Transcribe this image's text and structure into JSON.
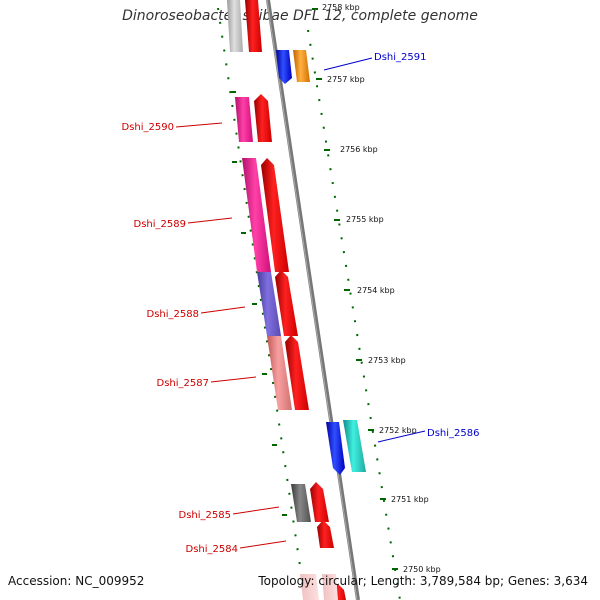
{
  "title": "Dinoroseobacter shibae DFL 12, complete genome",
  "footer": {
    "accession": "Accession: NC_009952",
    "topology": "Topology: circular; Length: 3,789,584 bp; Genes: 3,634"
  },
  "scale_labels": [
    "2758 kbp",
    "2757 kbp",
    "2756 kbp",
    "2755 kbp",
    "2754 kbp",
    "2753 kbp",
    "2752 kbp",
    "2751 kbp",
    "2750 kbp"
  ],
  "gene_labels": [
    {
      "name": "Dshi_2591",
      "side": "right",
      "color": "#0000cc"
    },
    {
      "name": "Dshi_2590",
      "side": "left",
      "color": "#cc0000"
    },
    {
      "name": "Dshi_2589",
      "side": "left",
      "color": "#cc0000"
    },
    {
      "name": "Dshi_2588",
      "side": "left",
      "color": "#cc0000"
    },
    {
      "name": "Dshi_2587",
      "side": "left",
      "color": "#cc0000"
    },
    {
      "name": "Dshi_2586",
      "side": "right",
      "color": "#0000cc"
    },
    {
      "name": "Dshi_2585",
      "side": "left",
      "color": "#cc0000"
    },
    {
      "name": "Dshi_2584",
      "side": "left",
      "color": "#cc0000"
    }
  ],
  "colors": {
    "forward": "#ff0000",
    "cog_magenta": "#ff1493",
    "cog_violet": "#6a5acd",
    "cog_salmon": "#f08080",
    "cog_grey": "#666666",
    "cog_lightgrey": "#bbbbbb",
    "reverse_blue": "#0000ff",
    "cog_orange": "#ff8c00",
    "cog_cyan": "#20b2aa",
    "tick": "#006600",
    "backbone": "#777777"
  }
}
